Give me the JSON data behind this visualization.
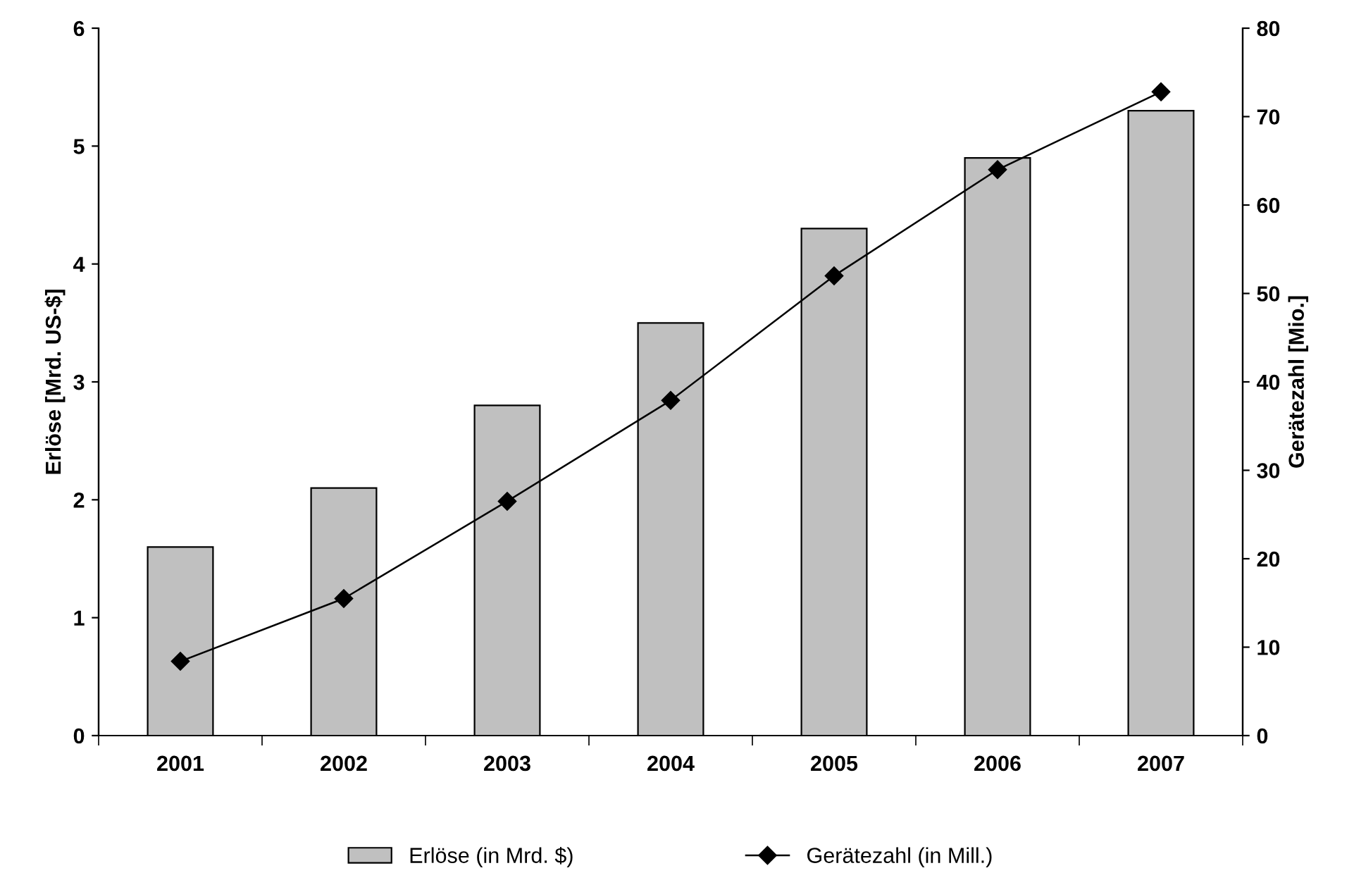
{
  "chart_data": {
    "type": "bar",
    "categories": [
      "2001",
      "2002",
      "2003",
      "2004",
      "2005",
      "2006",
      "2007"
    ],
    "ylabel": "Erlöse [Mrd. US-$]",
    "y2label": "Gerätezahl [Mio.]",
    "series": [
      {
        "name": "Erlöse (in Mrd. $)",
        "color": "#c0c0c0",
        "values": [
          1.6,
          2.1,
          2.8,
          3.5,
          4.3,
          4.9,
          5.3
        ]
      },
      {
        "name": "Gerätezahl (in Mill.)",
        "type": "line",
        "axis": "y2",
        "color": "#000000",
        "marker": "diamond",
        "values": [
          8.4,
          15.5,
          26.5,
          37.9,
          52,
          64,
          72.8
        ]
      }
    ],
    "ylim": [
      0,
      6
    ],
    "yticks": [
      0,
      1,
      2,
      3,
      4,
      5,
      6
    ],
    "y2lim": [
      0,
      80
    ],
    "y2ticks": [
      0,
      10,
      20,
      30,
      40,
      50,
      60,
      70,
      80
    ],
    "grid": false,
    "legend": "bottom"
  }
}
